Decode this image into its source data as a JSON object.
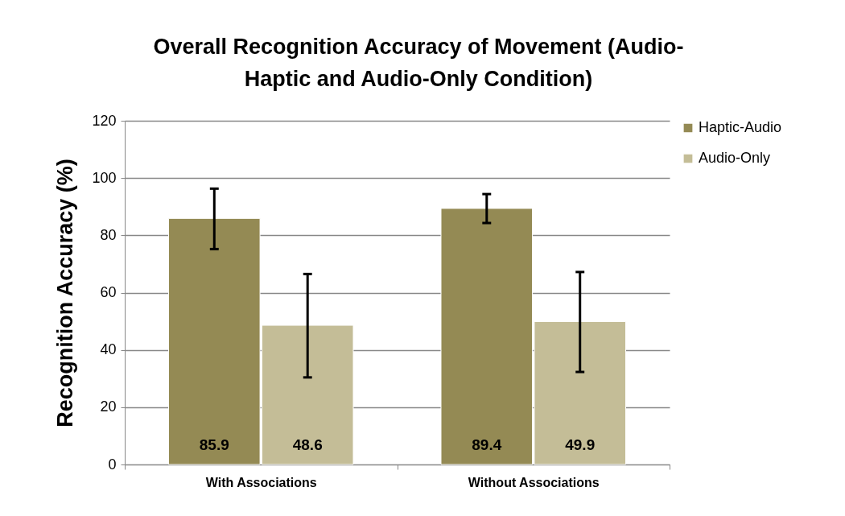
{
  "chart_data": {
    "type": "bar",
    "title": "Overall Recognition Accuracy of Movement (Audio-Haptic and Audio-Only Condition)",
    "ylabel": "Recognition Accuracy (%)",
    "categories": [
      "With Associations",
      "Without Associations"
    ],
    "series": [
      {
        "name": "Haptic-Audio",
        "color": "#948a54",
        "values": [
          85.9,
          89.4
        ],
        "errors": [
          [
            75.2,
            96.3
          ],
          [
            84.3,
            94.4
          ]
        ]
      },
      {
        "name": "Audio-Only",
        "color": "#c4bd97",
        "values": [
          48.6,
          49.9
        ],
        "errors": [
          [
            30.4,
            66.5
          ],
          [
            32.3,
            67.2
          ]
        ]
      }
    ],
    "ylim": [
      0,
      120
    ],
    "yticks": [
      0,
      20,
      40,
      60,
      80,
      100,
      120
    ],
    "grid": "y",
    "legend": "right",
    "data_labels": true
  }
}
